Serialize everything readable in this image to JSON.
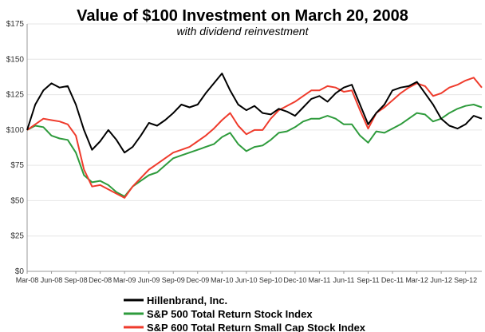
{
  "chart_data": {
    "type": "line",
    "title": "Value of $100 Investment on March 20, 2008",
    "subtitle": "with dividend reinvestment",
    "xlabel": "",
    "ylabel": "",
    "ylim": [
      0,
      175
    ],
    "yticks": [
      "$0",
      "$25",
      "$50",
      "$75",
      "$100",
      "$125",
      "$150",
      "$175"
    ],
    "x_tick_labels": [
      "Mar-08",
      "Jun-08",
      "Sep-08",
      "Dec-08",
      "Mar-09",
      "Jun-09",
      "Sep-09",
      "Dec-09",
      "Mar-10",
      "Jun-10",
      "Sep-10",
      "Dec-10",
      "Mar-11",
      "Jun-11",
      "Sep-11",
      "Dec-11",
      "Mar-12",
      "Jun-12",
      "Sep-12"
    ],
    "x_dates": [
      "Mar-08",
      "Apr-08",
      "May-08",
      "Jun-08",
      "Jul-08",
      "Aug-08",
      "Sep-08",
      "Oct-08",
      "Nov-08",
      "Dec-08",
      "Jan-09",
      "Feb-09",
      "Mar-09",
      "Apr-09",
      "May-09",
      "Jun-09",
      "Jul-09",
      "Aug-09",
      "Sep-09",
      "Oct-09",
      "Nov-09",
      "Dec-09",
      "Jan-10",
      "Feb-10",
      "Mar-10",
      "Apr-10",
      "May-10",
      "Jun-10",
      "Jul-10",
      "Aug-10",
      "Sep-10",
      "Oct-10",
      "Nov-10",
      "Dec-10",
      "Jan-11",
      "Feb-11",
      "Mar-11",
      "Apr-11",
      "May-11",
      "Jun-11",
      "Jul-11",
      "Aug-11",
      "Sep-11",
      "Oct-11",
      "Nov-11",
      "Dec-11",
      "Jan-12",
      "Feb-12",
      "Mar-12",
      "Apr-12",
      "May-12",
      "Jun-12",
      "Jul-12",
      "Aug-12",
      "Sep-12",
      "Oct-12",
      "Nov-12"
    ],
    "grid": true,
    "legend_position": "bottom",
    "series": [
      {
        "name": "Hillenbrand, Inc.",
        "color": "#000000",
        "values": [
          100,
          118,
          128,
          133,
          130,
          131,
          118,
          100,
          86,
          92,
          100,
          93,
          84,
          88,
          96,
          105,
          103,
          107,
          112,
          118,
          116,
          118,
          126,
          133,
          140,
          128,
          118,
          114,
          117,
          112,
          111,
          115,
          113,
          110,
          116,
          122,
          124,
          120,
          126,
          130,
          132,
          118,
          104,
          112,
          118,
          128,
          130,
          131,
          134,
          126,
          118,
          108,
          103,
          101,
          104,
          110,
          108
        ]
      },
      {
        "name": "S&P 500 Total Return Stock Index",
        "color": "#2e9b3c",
        "values": [
          100,
          103,
          102,
          96,
          94,
          93,
          84,
          68,
          63,
          64,
          61,
          56,
          53,
          60,
          64,
          68,
          70,
          75,
          80,
          82,
          84,
          86,
          88,
          90,
          95,
          98,
          90,
          85,
          88,
          89,
          93,
          98,
          99,
          102,
          106,
          108,
          108,
          110,
          108,
          104,
          104,
          96,
          91,
          99,
          98,
          101,
          104,
          108,
          112,
          111,
          106,
          108,
          112,
          115,
          117,
          118,
          116
        ]
      },
      {
        "name": "S&P 600 Total Return Small Cap Stock Index",
        "color": "#ef3b2c",
        "values": [
          100,
          104,
          108,
          107,
          106,
          104,
          96,
          72,
          60,
          61,
          58,
          55,
          52,
          60,
          66,
          72,
          76,
          80,
          84,
          86,
          88,
          92,
          96,
          101,
          107,
          112,
          103,
          97,
          100,
          100,
          108,
          114,
          117,
          120,
          124,
          128,
          128,
          131,
          130,
          127,
          128,
          114,
          101,
          112,
          116,
          121,
          126,
          130,
          133,
          131,
          124,
          126,
          130,
          132,
          135,
          137,
          130
        ]
      }
    ]
  }
}
